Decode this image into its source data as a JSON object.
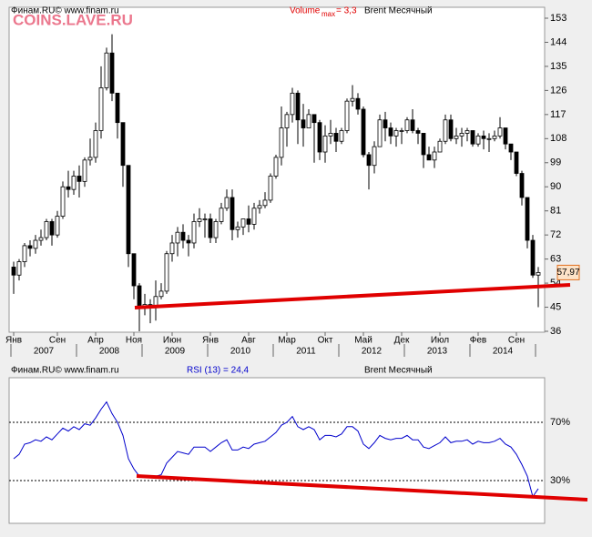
{
  "header": {
    "source": "Финам.RU© www.finam.ru",
    "volume": "Volume",
    "volume_sub": "max",
    "volume_rest": "= 3,3",
    "instrument": "Brent Месячный",
    "watermark": "COINS.LAVE.RU"
  },
  "chart_data": [
    {
      "type": "candlestick",
      "categories": [
        "Янв",
        null,
        null,
        null,
        null,
        null,
        null,
        null,
        "Сен",
        null,
        null,
        null,
        null,
        null,
        null,
        "Апр",
        null,
        null,
        null,
        null,
        null,
        null,
        "Ноя",
        null,
        null,
        null,
        null,
        null,
        null,
        "Июн",
        null,
        null,
        null,
        null,
        null,
        null,
        "Янв",
        null,
        null,
        null,
        null,
        null,
        null,
        "Авг",
        null,
        null,
        null,
        null,
        null,
        null,
        "Мар",
        null,
        null,
        null,
        null,
        null,
        null,
        "Окт",
        null,
        null,
        null,
        null,
        null,
        null,
        "Май",
        null,
        null,
        null,
        null,
        null,
        null,
        "Дек",
        null,
        null,
        null,
        null,
        null,
        null,
        "Июл",
        null,
        null,
        null,
        null,
        null,
        null,
        "Фев",
        null,
        null,
        null,
        null,
        null,
        null,
        "Сен",
        null,
        null,
        null,
        null
      ],
      "years": [
        "2007",
        "2008",
        "2009",
        "2010",
        "2011",
        "2012",
        "2013",
        "2014"
      ],
      "open": [
        60,
        57,
        62,
        68,
        67,
        70,
        71,
        77,
        72,
        79,
        90,
        89,
        94,
        92,
        100,
        101,
        111,
        127,
        140,
        125,
        114,
        98,
        65,
        53,
        45,
        46,
        45,
        49,
        51,
        65,
        69,
        73,
        70,
        69,
        77,
        78,
        78,
        71,
        77,
        82,
        86,
        74,
        75,
        78,
        76,
        82,
        83,
        85,
        94,
        101,
        112,
        117,
        125,
        115,
        112,
        117,
        114,
        103,
        109,
        110,
        107,
        111,
        122,
        123,
        119,
        102,
        98,
        105,
        115,
        112,
        109,
        111,
        111,
        115,
        111,
        110,
        102,
        100,
        103,
        107,
        115,
        108,
        109,
        110,
        111,
        106,
        109,
        108,
        108,
        109,
        112,
        106,
        103,
        95,
        86,
        70,
        57
      ],
      "high": [
        62,
        63,
        69,
        70,
        72,
        74,
        78,
        78,
        81,
        92,
        96,
        96,
        98,
        101,
        108,
        114,
        135,
        142,
        147,
        125,
        114,
        98,
        65,
        54,
        50,
        48,
        55,
        54,
        66,
        72,
        75,
        76,
        72,
        80,
        82,
        80,
        80,
        78,
        84,
        89,
        89,
        77,
        78,
        83,
        84,
        85,
        88,
        95,
        102,
        120,
        118,
        127,
        126,
        121,
        119,
        117,
        115,
        113,
        115,
        112,
        112,
        123,
        128,
        125,
        120,
        103,
        107,
        117,
        118,
        114,
        112,
        112,
        116,
        119,
        112,
        110,
        105,
        105,
        108,
        117,
        117,
        112,
        112,
        112,
        111,
        110,
        111,
        110,
        111,
        116,
        112,
        106,
        103,
        96,
        86,
        72,
        60
      ],
      "low": [
        50,
        55,
        60,
        64,
        65,
        68,
        70,
        68,
        71,
        78,
        86,
        87,
        86,
        90,
        98,
        99,
        108,
        126,
        122,
        108,
        90,
        60,
        48,
        36,
        42,
        39,
        40,
        48,
        50,
        62,
        64,
        67,
        64,
        67,
        75,
        71,
        69,
        69,
        76,
        81,
        70,
        71,
        72,
        73,
        74,
        80,
        82,
        84,
        93,
        98,
        105,
        114,
        106,
        105,
        112,
        99,
        100,
        99,
        106,
        103,
        106,
        110,
        120,
        117,
        101,
        89,
        95,
        105,
        107,
        106,
        105,
        106,
        110,
        110,
        106,
        97,
        100,
        97,
        103,
        106,
        107,
        106,
        105,
        107,
        105,
        105,
        104,
        103,
        107,
        108,
        104,
        100,
        94,
        83,
        67,
        56,
        45
      ],
      "close": [
        57,
        62,
        68,
        67,
        70,
        71,
        77,
        72,
        79,
        90,
        89,
        94,
        92,
        100,
        101,
        111,
        127,
        140,
        125,
        114,
        98,
        65,
        53,
        45,
        46,
        45,
        49,
        51,
        65,
        69,
        73,
        70,
        69,
        77,
        78,
        78,
        71,
        77,
        82,
        86,
        74,
        75,
        78,
        76,
        82,
        83,
        85,
        94,
        101,
        112,
        117,
        125,
        115,
        112,
        117,
        114,
        103,
        109,
        110,
        107,
        111,
        122,
        123,
        119,
        102,
        98,
        105,
        115,
        112,
        109,
        111,
        111,
        115,
        111,
        110,
        102,
        100,
        103,
        107,
        115,
        108,
        109,
        110,
        111,
        106,
        109,
        108,
        108,
        109,
        112,
        106,
        103,
        95,
        86,
        70,
        57,
        57.97
      ],
      "last_value_label": "57,97",
      "up_color": "#ffffff",
      "down_color": "#000000",
      "ylim": [
        36,
        153
      ],
      "yticks": [
        36,
        45,
        54,
        63,
        72,
        81,
        90,
        99,
        108,
        117,
        126,
        135,
        144,
        153
      ]
    },
    {
      "type": "line",
      "title": "RSI (13) = 24,4",
      "source": "Финам.RU© www.finam.ru",
      "instrument": "Brent Месячный",
      "series": [
        {
          "name": "RSI (13)",
          "color": "#0000cc",
          "values": [
            45,
            48,
            55,
            56,
            58,
            57,
            60,
            58,
            62,
            66,
            64,
            67,
            65,
            69,
            68,
            73,
            79,
            84,
            76,
            70,
            61,
            45,
            38,
            33,
            33,
            32,
            33,
            34,
            42,
            46,
            50,
            49,
            48,
            53,
            53,
            53,
            50,
            53,
            56,
            58,
            51,
            51,
            53,
            52,
            55,
            56,
            57,
            60,
            63,
            68,
            70,
            74,
            67,
            65,
            67,
            65,
            58,
            61,
            61,
            60,
            62,
            67,
            67,
            64,
            55,
            52,
            56,
            61,
            59,
            58,
            59,
            59,
            61,
            58,
            58,
            53,
            52,
            54,
            56,
            60,
            56,
            57,
            57,
            58,
            55,
            57,
            56,
            56,
            57,
            59,
            55,
            53,
            48,
            41,
            33,
            19,
            24.4
          ]
        }
      ],
      "ylim": [
        0,
        100
      ],
      "yticks": [
        {
          "value": 30,
          "label": "30%"
        },
        {
          "value": 70,
          "label": "70%"
        }
      ],
      "grid": "dashed"
    }
  ]
}
